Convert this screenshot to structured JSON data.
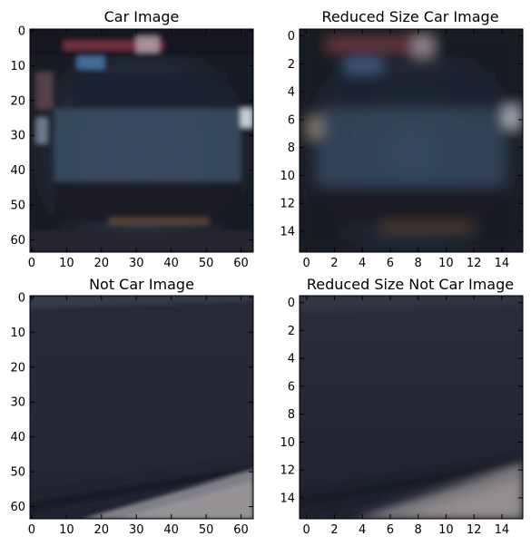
{
  "figure": {
    "panels": [
      {
        "id": "car",
        "title": "Car Image",
        "pixels": 64,
        "x_ticks": [
          "0",
          "10",
          "20",
          "30",
          "40",
          "50",
          "60"
        ],
        "y_ticks": [
          "0",
          "10",
          "20",
          "30",
          "40",
          "50",
          "60"
        ],
        "tick_values": [
          0,
          10,
          20,
          30,
          40,
          50,
          60
        ],
        "content": "blurred rear view of a dark car at night"
      },
      {
        "id": "car-reduced",
        "title": "Reduced Size Car Image",
        "pixels": 16,
        "x_ticks": [
          "0",
          "2",
          "4",
          "6",
          "8",
          "10",
          "12",
          "14"
        ],
        "y_ticks": [
          "0",
          "2",
          "4",
          "6",
          "8",
          "10",
          "12",
          "14"
        ],
        "tick_values": [
          0,
          2,
          4,
          6,
          8,
          10,
          12,
          14
        ],
        "content": "16x16 downsampled version of the car image"
      },
      {
        "id": "notcar",
        "title": "Not Car Image",
        "pixels": 64,
        "x_ticks": [
          "0",
          "10",
          "20",
          "30",
          "40",
          "50",
          "60"
        ],
        "y_ticks": [
          "0",
          "10",
          "20",
          "30",
          "40",
          "50",
          "60"
        ],
        "tick_values": [
          0,
          10,
          20,
          30,
          40,
          50,
          60
        ],
        "content": "dark asphalt road surface with lighter patch bottom-right"
      },
      {
        "id": "notcar-reduced",
        "title": "Reduced Size Not Car Image",
        "pixels": 16,
        "x_ticks": [
          "0",
          "2",
          "4",
          "6",
          "8",
          "10",
          "12",
          "14"
        ],
        "y_ticks": [
          "0",
          "2",
          "4",
          "6",
          "8",
          "10",
          "12",
          "14"
        ],
        "tick_values": [
          0,
          2,
          4,
          6,
          8,
          10,
          12,
          14
        ],
        "content": "16x16 downsampled version of the road image"
      }
    ]
  }
}
